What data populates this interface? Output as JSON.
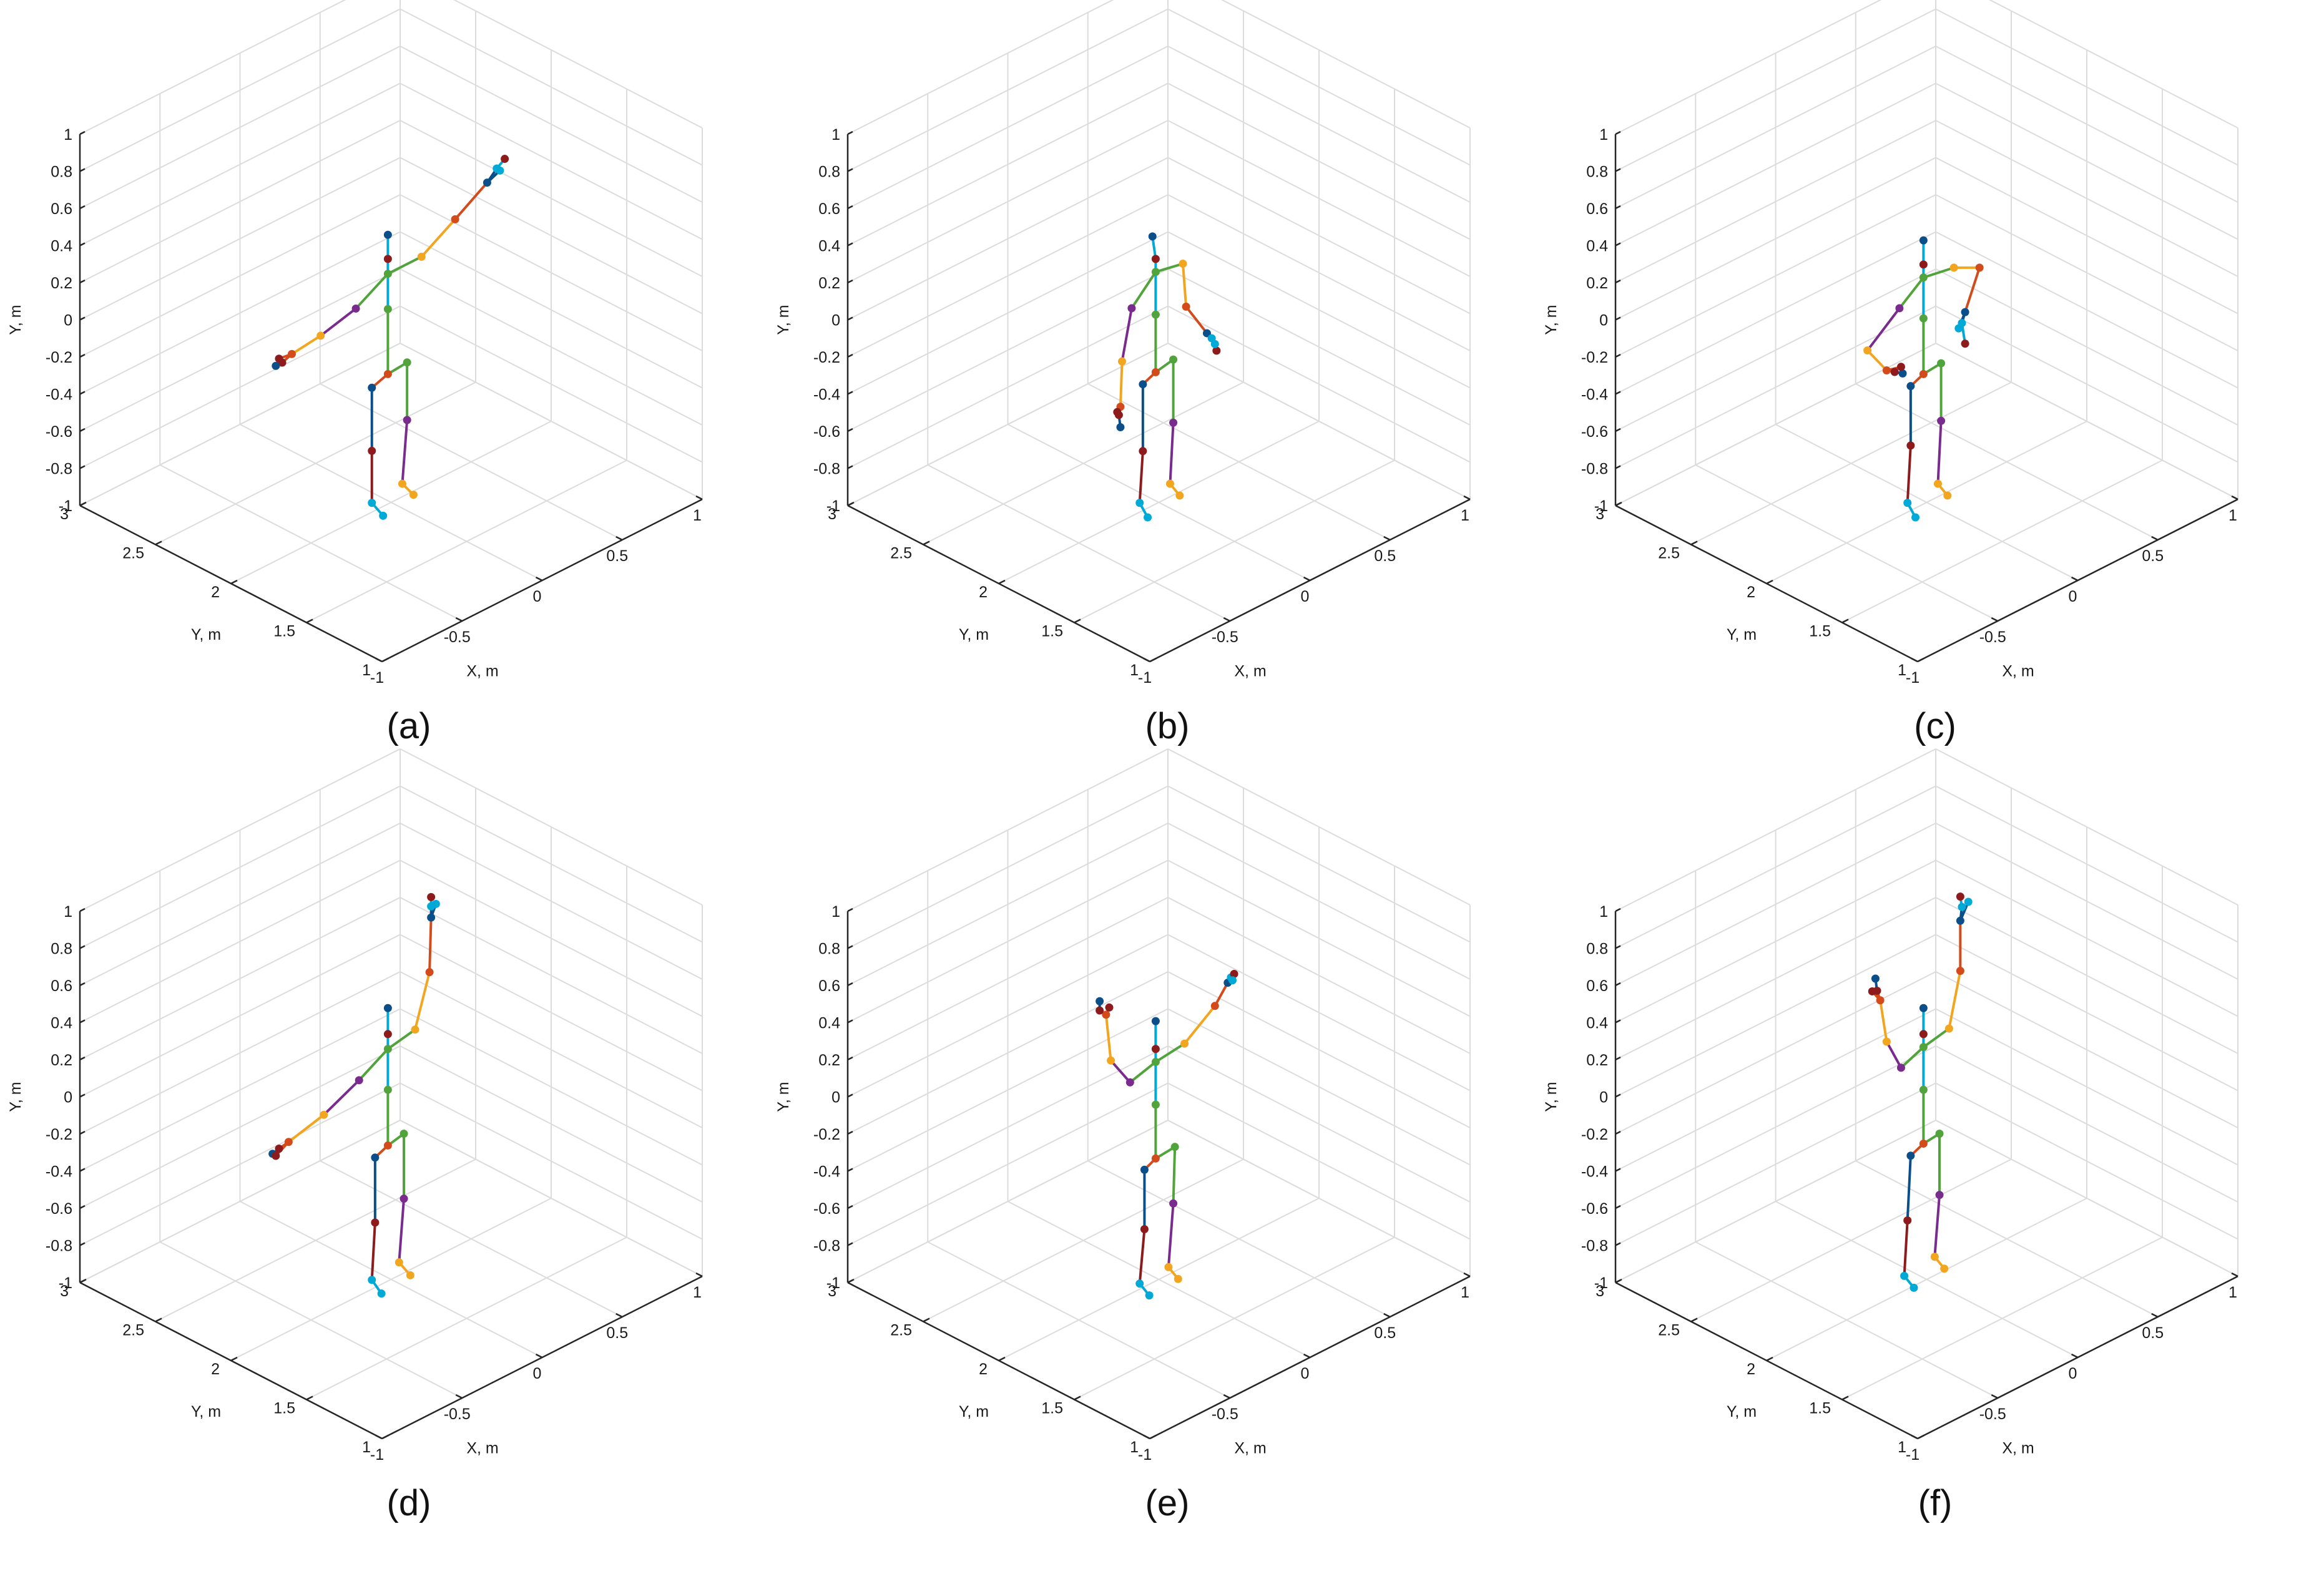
{
  "figure": {
    "captions": [
      "(a)",
      "(b)",
      "(c)",
      "(d)",
      "(e)",
      "(f)"
    ]
  },
  "chart_data": [
    {
      "type": "scatter",
      "title": "",
      "caption": "(a)",
      "xlabel": "X, m",
      "ylabel": "Y, m",
      "zlabel": "Y, m",
      "xlim": [
        -1,
        1
      ],
      "depth_lim": [
        1,
        3
      ],
      "ylim": [
        -1,
        1
      ],
      "x_ticks": [
        "-1",
        "-0.5",
        "0",
        "0.5",
        "1"
      ],
      "depth_ticks": [
        "1",
        "1.5",
        "2",
        "2.5",
        "3"
      ],
      "y_ticks": [
        "-1",
        "-0.8",
        "-0.6",
        "-0.4",
        "-0.2",
        "0",
        "0.2",
        "0.4",
        "0.6",
        "0.8",
        "1"
      ],
      "grid": true,
      "joints": {
        "head": [
          -0.02,
          0.45,
          2.0
        ],
        "neck": [
          -0.02,
          0.32,
          2.0
        ],
        "spine_shoulder": [
          -0.02,
          0.24,
          2.0
        ],
        "spine_mid": [
          -0.02,
          0.05,
          2.0
        ],
        "spine_base": [
          -0.02,
          -0.3,
          2.0
        ],
        "hip_left": [
          -0.12,
          -0.33,
          2.0
        ],
        "knee_left": [
          -0.12,
          -0.67,
          2.0
        ],
        "ankle_left": [
          -0.12,
          -0.95,
          2.0
        ],
        "foot_left": [
          -0.05,
          -1.05,
          2.0
        ],
        "hip_right": [
          0.1,
          -0.29,
          2.0
        ],
        "knee_right": [
          0.1,
          -0.6,
          2.0
        ],
        "ankle_right": [
          0.07,
          -0.93,
          2.0
        ],
        "foot_right": [
          0.14,
          -1.02,
          2.0
        ],
        "shoulder_left": [
          -0.22,
          0.14,
          2.0
        ],
        "elbow_left": [
          -0.44,
          0.09,
          2.0
        ],
        "wrist_left": [
          -0.62,
          0.07,
          2.0
        ],
        "hand_left": [
          -0.68,
          0.05,
          2.0
        ],
        "handtip_left": [
          -0.72,
          0.05,
          2.0
        ],
        "thumb_left": [
          -0.7,
          0.08,
          2.0
        ],
        "shoulder_right": [
          0.19,
          0.24,
          2.0
        ],
        "elbow_right": [
          0.4,
          0.35,
          2.0
        ],
        "wrist_right": [
          0.6,
          0.46,
          2.0
        ],
        "hand_right": [
          0.66,
          0.51,
          2.0
        ],
        "handtip_right": [
          0.71,
          0.54,
          2.0
        ],
        "thumb_right": [
          0.68,
          0.49,
          2.0
        ]
      }
    },
    {
      "type": "scatter",
      "title": "",
      "caption": "(b)",
      "xlabel": "X, m",
      "ylabel": "Y, m",
      "zlabel": "Y, m",
      "xlim": [
        -1,
        1
      ],
      "depth_lim": [
        1,
        3
      ],
      "ylim": [
        -1,
        1
      ],
      "x_ticks": [
        "-1",
        "-0.5",
        "0",
        "0.5",
        "1"
      ],
      "depth_ticks": [
        "1",
        "1.5",
        "2",
        "2.5",
        "3"
      ],
      "y_ticks": [
        "-1",
        "-0.8",
        "-0.6",
        "-0.4",
        "-0.2",
        "0",
        "0.2",
        "0.4",
        "0.6",
        "0.8",
        "1"
      ],
      "grid": true,
      "joints": {
        "head": [
          -0.04,
          0.45,
          2.0
        ],
        "neck": [
          -0.02,
          0.32,
          2.0
        ],
        "spine_shoulder": [
          -0.02,
          0.25,
          2.0
        ],
        "spine_mid": [
          -0.02,
          0.02,
          2.0
        ],
        "spine_base": [
          -0.02,
          -0.29,
          2.0
        ],
        "hip_left": [
          -0.1,
          -0.32,
          2.0
        ],
        "knee_left": [
          -0.1,
          -0.68,
          2.0
        ],
        "ankle_left": [
          -0.12,
          -0.95,
          2.0
        ],
        "foot_left": [
          -0.07,
          -1.05,
          2.0
        ],
        "hip_right": [
          0.09,
          -0.27,
          2.0
        ],
        "knee_right": [
          0.09,
          -0.61,
          2.0
        ],
        "ankle_right": [
          0.07,
          -0.93,
          2.0
        ],
        "foot_right": [
          0.13,
          -1.02,
          2.0
        ],
        "shoulder_left": [
          -0.17,
          0.12,
          2.0
        ],
        "elbow_left": [
          -0.23,
          -0.14,
          2.0
        ],
        "wrist_left": [
          -0.24,
          -0.38,
          2.0
        ],
        "hand_left": [
          -0.25,
          -0.42,
          2.0
        ],
        "handtip_left": [
          -0.24,
          -0.49,
          2.0
        ],
        "thumb_left": [
          -0.26,
          -0.4,
          2.0
        ],
        "shoulder_right": [
          0.15,
          0.22,
          2.0
        ],
        "elbow_right": [
          0.17,
          -0.02,
          2.0
        ],
        "wrist_right": [
          0.3,
          -0.22,
          2.0
        ],
        "hand_right": [
          0.33,
          -0.26,
          2.0
        ],
        "handtip_right": [
          0.36,
          -0.34,
          2.0
        ],
        "thumb_right": [
          0.35,
          -0.3,
          2.0
        ]
      }
    },
    {
      "type": "scatter",
      "title": "",
      "caption": "(c)",
      "xlabel": "X, m",
      "ylabel": "Y, m",
      "zlabel": "Y, m",
      "xlim": [
        -1,
        1
      ],
      "depth_lim": [
        1,
        3
      ],
      "ylim": [
        -1,
        1
      ],
      "x_ticks": [
        "-1",
        "-0.5",
        "0",
        "0.5",
        "1"
      ],
      "depth_ticks": [
        "1",
        "1.5",
        "2",
        "2.5",
        "3"
      ],
      "y_ticks": [
        "-1",
        "-0.8",
        "-0.6",
        "-0.4",
        "-0.2",
        "0",
        "0.2",
        "0.4",
        "0.6",
        "0.8",
        "1"
      ],
      "grid": true,
      "joints": {
        "head": [
          -0.02,
          0.42,
          2.0
        ],
        "neck": [
          -0.02,
          0.29,
          2.0
        ],
        "spine_shoulder": [
          -0.02,
          0.22,
          2.0
        ],
        "spine_mid": [
          -0.02,
          0.0,
          2.0
        ],
        "spine_base": [
          -0.02,
          -0.3,
          2.0
        ],
        "hip_left": [
          -0.1,
          -0.33,
          2.0
        ],
        "knee_left": [
          -0.1,
          -0.65,
          2.0
        ],
        "ankle_left": [
          -0.12,
          -0.95,
          2.0
        ],
        "foot_left": [
          -0.07,
          -1.05,
          2.0
        ],
        "hip_right": [
          0.09,
          -0.29,
          2.0
        ],
        "knee_right": [
          0.09,
          -0.6,
          2.0
        ],
        "ankle_right": [
          0.07,
          -0.93,
          2.0
        ],
        "foot_right": [
          0.13,
          -1.02,
          2.0
        ],
        "shoulder_left": [
          -0.17,
          0.12,
          2.0
        ],
        "elbow_left": [
          -0.37,
          -0.02,
          2.0
        ],
        "wrist_left": [
          -0.25,
          -0.18,
          2.0
        ],
        "hand_left": [
          -0.2,
          -0.21,
          2.0
        ],
        "handtip_left": [
          -0.15,
          -0.24,
          2.0
        ],
        "thumb_left": [
          -0.16,
          -0.2,
          2.0
        ],
        "shoulder_right": [
          0.17,
          0.19,
          2.0
        ],
        "elbow_right": [
          0.33,
          0.12,
          2.0
        ],
        "wrist_right": [
          0.24,
          -0.08,
          2.0
        ],
        "hand_right": [
          0.22,
          -0.13,
          2.0
        ],
        "handtip_right": [
          0.24,
          -0.25,
          2.0
        ],
        "thumb_right": [
          0.2,
          -0.15,
          2.0
        ]
      }
    },
    {
      "type": "scatter",
      "title": "",
      "caption": "(d)",
      "xlabel": "X, m",
      "ylabel": "Y, m",
      "zlabel": "Y, m",
      "xlim": [
        -1,
        1
      ],
      "depth_lim": [
        1,
        3
      ],
      "ylim": [
        -1,
        1
      ],
      "x_ticks": [
        "-1",
        "-0.5",
        "0",
        "0.5",
        "1"
      ],
      "depth_ticks": [
        "1",
        "1.5",
        "2",
        "2.5",
        "3"
      ],
      "y_ticks": [
        "-1",
        "-0.8",
        "-0.6",
        "-0.4",
        "-0.2",
        "0",
        "0.2",
        "0.4",
        "0.6",
        "0.8",
        "1"
      ],
      "grid": true,
      "joints": {
        "head": [
          -0.02,
          0.47,
          2.0
        ],
        "neck": [
          -0.02,
          0.33,
          2.0
        ],
        "spine_shoulder": [
          -0.02,
          0.25,
          2.0
        ],
        "spine_mid": [
          -0.02,
          0.03,
          2.0
        ],
        "spine_base": [
          -0.02,
          -0.27,
          2.0
        ],
        "hip_left": [
          -0.1,
          -0.3,
          2.0
        ],
        "knee_left": [
          -0.1,
          -0.65,
          2.0
        ],
        "ankle_left": [
          -0.12,
          -0.95,
          2.0
        ],
        "foot_left": [
          -0.06,
          -1.05,
          2.0
        ],
        "hip_right": [
          0.08,
          -0.25,
          2.0
        ],
        "knee_right": [
          0.08,
          -0.6,
          2.0
        ],
        "ankle_right": [
          0.05,
          -0.93,
          2.0
        ],
        "foot_right": [
          0.12,
          -1.03,
          2.0
        ],
        "shoulder_left": [
          -0.2,
          0.16,
          2.0
        ],
        "elbow_left": [
          -0.42,
          0.07,
          2.0
        ],
        "wrist_left": [
          -0.64,
          0.02,
          2.0
        ],
        "hand_left": [
          -0.7,
          0.01,
          2.0
        ],
        "handtip_left": [
          -0.74,
          0.0,
          2.0
        ],
        "thumb_left": [
          -0.72,
          -0.02,
          2.0
        ],
        "shoulder_right": [
          0.15,
          0.28,
          2.0
        ],
        "elbow_right": [
          0.24,
          0.55,
          2.0
        ],
        "wrist_right": [
          0.25,
          0.84,
          2.0
        ],
        "hand_right": [
          0.25,
          0.9,
          2.0
        ],
        "handtip_right": [
          0.25,
          0.95,
          2.0
        ],
        "thumb_right": [
          0.28,
          0.9,
          2.0
        ]
      }
    },
    {
      "type": "scatter",
      "title": "",
      "caption": "(e)",
      "xlabel": "X, m",
      "ylabel": "Y, m",
      "zlabel": "Y, m",
      "xlim": [
        -1,
        1
      ],
      "depth_lim": [
        1,
        3
      ],
      "ylim": [
        -1,
        1
      ],
      "x_ticks": [
        "-1",
        "-0.5",
        "0",
        "0.5",
        "1"
      ],
      "depth_ticks": [
        "1",
        "1.5",
        "2",
        "2.5",
        "3"
      ],
      "y_ticks": [
        "-1",
        "-0.8",
        "-0.6",
        "-0.4",
        "-0.2",
        "0",
        "0.2",
        "0.4",
        "0.6",
        "0.8",
        "1"
      ],
      "grid": true,
      "joints": {
        "head": [
          -0.02,
          0.4,
          2.0
        ],
        "neck": [
          -0.02,
          0.25,
          2.0
        ],
        "spine_shoulder": [
          -0.02,
          0.18,
          2.0
        ],
        "spine_mid": [
          -0.02,
          -0.05,
          2.0
        ],
        "spine_base": [
          -0.02,
          -0.34,
          2.0
        ],
        "hip_left": [
          -0.09,
          -0.37,
          2.0
        ],
        "knee_left": [
          -0.09,
          -0.69,
          2.0
        ],
        "ankle_left": [
          -0.12,
          -0.97,
          2.0
        ],
        "foot_left": [
          -0.06,
          -1.06,
          2.0
        ],
        "hip_right": [
          0.1,
          -0.33,
          2.0
        ],
        "knee_right": [
          0.09,
          -0.63,
          2.0
        ],
        "ankle_right": [
          0.06,
          -0.96,
          2.0
        ],
        "foot_right": [
          0.12,
          -1.05,
          2.0
        ],
        "shoulder_left": [
          -0.18,
          0.14,
          2.0
        ],
        "elbow_left": [
          -0.3,
          0.31,
          2.0
        ],
        "wrist_left": [
          -0.33,
          0.57,
          2.0
        ],
        "hand_left": [
          -0.37,
          0.61,
          2.0
        ],
        "handtip_left": [
          -0.37,
          0.66,
          2.0
        ],
        "thumb_left": [
          -0.31,
          0.6,
          2.0
        ],
        "shoulder_right": [
          0.16,
          0.2,
          2.0
        ],
        "elbow_right": [
          0.35,
          0.32,
          2.0
        ],
        "wrist_right": [
          0.43,
          0.41,
          2.0
        ],
        "hand_right": [
          0.45,
          0.43,
          2.0
        ],
        "handtip_right": [
          0.47,
          0.44,
          2.0
        ],
        "thumb_right": [
          0.46,
          0.41,
          2.0
        ]
      }
    },
    {
      "type": "scatter",
      "title": "",
      "caption": "(f)",
      "xlabel": "X, m",
      "ylabel": "Y, m",
      "zlabel": "Y, m",
      "xlim": [
        -1,
        1
      ],
      "depth_lim": [
        1,
        3
      ],
      "ylim": [
        -1,
        1
      ],
      "x_ticks": [
        "-1",
        "-0.5",
        "0",
        "0.5",
        "1"
      ],
      "depth_ticks": [
        "1",
        "1.5",
        "2",
        "2.5",
        "3"
      ],
      "y_ticks": [
        "-1",
        "-0.8",
        "-0.6",
        "-0.4",
        "-0.2",
        "0",
        "0.2",
        "0.4",
        "0.6",
        "0.8",
        "1"
      ],
      "grid": true,
      "joints": {
        "head": [
          -0.02,
          0.47,
          2.0
        ],
        "neck": [
          -0.02,
          0.33,
          2.0
        ],
        "spine_shoulder": [
          -0.02,
          0.26,
          2.0
        ],
        "spine_mid": [
          -0.02,
          0.03,
          2.0
        ],
        "spine_base": [
          -0.02,
          -0.26,
          2.0
        ],
        "hip_left": [
          -0.1,
          -0.29,
          2.0
        ],
        "knee_left": [
          -0.12,
          -0.63,
          2.0
        ],
        "ankle_left": [
          -0.14,
          -0.92,
          2.0
        ],
        "foot_left": [
          -0.08,
          -1.01,
          2.0
        ],
        "hip_right": [
          0.08,
          -0.25,
          2.0
        ],
        "knee_right": [
          0.08,
          -0.58,
          2.0
        ],
        "ankle_right": [
          0.05,
          -0.9,
          2.0
        ],
        "foot_right": [
          0.11,
          -0.99,
          2.0
        ],
        "shoulder_left": [
          -0.16,
          0.21,
          2.0
        ],
        "elbow_left": [
          -0.25,
          0.39,
          2.0
        ],
        "wrist_left": [
          -0.29,
          0.63,
          2.0
        ],
        "hand_left": [
          -0.31,
          0.69,
          2.0
        ],
        "handtip_left": [
          -0.32,
          0.76,
          2.0
        ],
        "thumb_left": [
          -0.34,
          0.7,
          2.0
        ],
        "shoulder_right": [
          0.14,
          0.29,
          2.0
        ],
        "elbow_right": [
          0.21,
          0.57,
          2.0
        ],
        "wrist_right": [
          0.21,
          0.84,
          2.0
        ],
        "hand_right": [
          0.22,
          0.91,
          2.0
        ],
        "handtip_right": [
          0.21,
          0.97,
          2.0
        ],
        "thumb_right": [
          0.26,
          0.92,
          2.0
        ]
      }
    }
  ],
  "bone_colors": {
    "torso_upper": "#00a9d6",
    "torso_lower": "#51a33b",
    "left_upper": "#7a2b8e",
    "left_lower": "#f2a51e",
    "left_hand": "#d34a1b",
    "right_upper": "#f2a51e",
    "right_lower": "#d34a1b",
    "right_hand": "#0b4f8a",
    "leg_left_thigh": "#0b4f8a",
    "leg_left_shin": "#8e1b1b",
    "leg_left_foot": "#00a9d6",
    "leg_right_thigh": "#51a33b",
    "leg_right_shin": "#7a2b8e",
    "leg_right_foot": "#f2a51e",
    "grid": "#dcdcdc",
    "axis": "#262626"
  }
}
